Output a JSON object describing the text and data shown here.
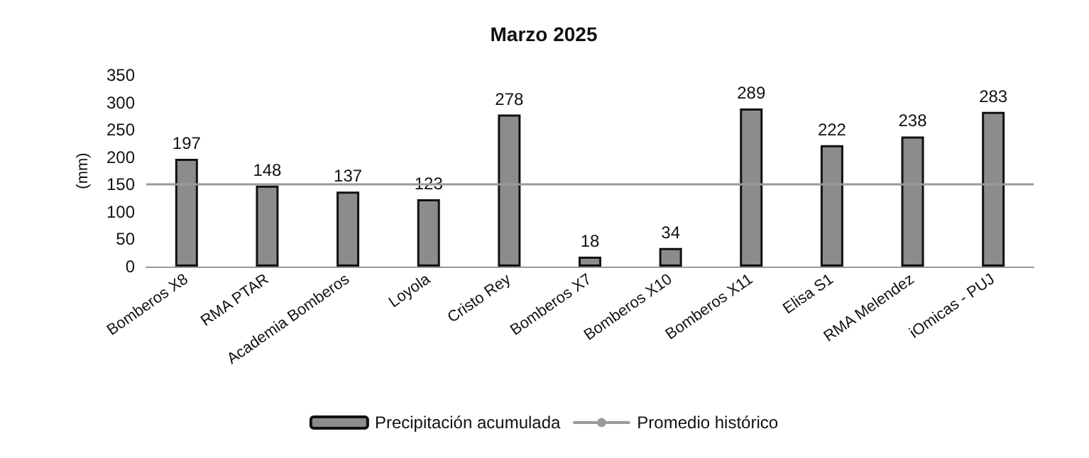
{
  "chart_data": {
    "type": "bar",
    "title": "Marzo 2025",
    "ylabel": "(mm)",
    "categories": [
      "Bomberos X8",
      "RMA PTAR",
      "Academia Bomberos",
      "Loyola",
      "Cristo Rey",
      "Bomberos X7",
      "Bomberos X10",
      "Bomberos X11",
      "Elisa S1",
      "RMA Melendez",
      "iOmicas - PUJ"
    ],
    "series": [
      {
        "name": "Precipitación acumulada",
        "color": "#8c8c8c",
        "values": [
          197,
          148,
          137,
          123,
          278,
          18,
          34,
          289,
          222,
          238,
          283
        ]
      }
    ],
    "ref_lines": [
      {
        "axis": "y",
        "value": 150,
        "label": "Promedio histórico",
        "color": "#9a9a9a"
      }
    ],
    "ylim": [
      0,
      350
    ],
    "yticks": [
      0,
      50,
      100,
      150,
      200,
      250,
      300,
      350
    ],
    "grid": false,
    "legend": "bottom",
    "data_labels": true
  }
}
